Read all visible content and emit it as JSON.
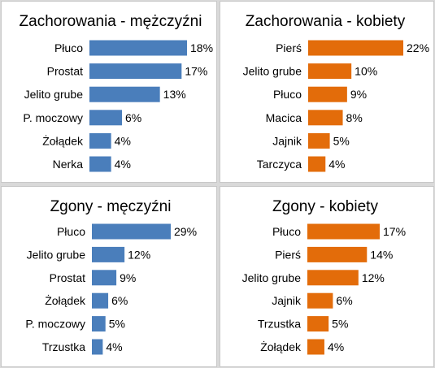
{
  "chart_data": [
    {
      "type": "bar",
      "orientation": "horizontal",
      "title": "Zachorowania - mężczyźni",
      "categories": [
        "Płuco",
        "Prostat",
        "Jelito grube",
        "P. moczowy",
        "Żołądek",
        "Nerka"
      ],
      "values": [
        18,
        17,
        13,
        6,
        4,
        4
      ],
      "value_labels": [
        "18%",
        "17%",
        "13%",
        "6%",
        "4%",
        "4%"
      ],
      "color": "#4a7ebb"
    },
    {
      "type": "bar",
      "orientation": "horizontal",
      "title": "Zachorowania - kobiety",
      "categories": [
        "Pierś",
        "Jelito grube",
        "Płuco",
        "Macica",
        "Jajnik",
        "Tarczyca"
      ],
      "values": [
        22,
        10,
        9,
        8,
        5,
        4
      ],
      "value_labels": [
        "22%",
        "10%",
        "9%",
        "8%",
        "5%",
        "4%"
      ],
      "color": "#e36c0a"
    },
    {
      "type": "bar",
      "orientation": "horizontal",
      "title": "Zgony - męczyźni",
      "categories": [
        "Płuco",
        "Jelito grube",
        "Prostat",
        "Żołądek",
        "P. moczowy",
        "Trzustka"
      ],
      "values": [
        29,
        12,
        9,
        6,
        5,
        4
      ],
      "value_labels": [
        "29%",
        "12%",
        "9%",
        "6%",
        "5%",
        "4%"
      ],
      "color": "#4a7ebb"
    },
    {
      "type": "bar",
      "orientation": "horizontal",
      "title": "Zgony - kobiety",
      "categories": [
        "Płuco",
        "Pierś",
        "Jelito grube",
        "Jajnik",
        "Trzustka",
        "Żołądek"
      ],
      "values": [
        17,
        14,
        12,
        6,
        5,
        4
      ],
      "value_labels": [
        "17%",
        "14%",
        "12%",
        "6%",
        "5%",
        "4%"
      ],
      "color": "#e36c0a"
    }
  ]
}
